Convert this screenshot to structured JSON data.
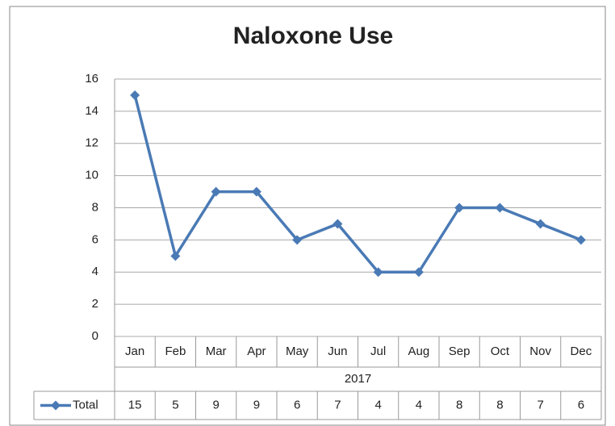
{
  "chart_data": {
    "type": "line",
    "title": "Naloxone Use",
    "categories": [
      "Jan",
      "Feb",
      "Mar",
      "Apr",
      "May",
      "Jun",
      "Jul",
      "Aug",
      "Sep",
      "Oct",
      "Nov",
      "Dec"
    ],
    "category_group": "2017",
    "series": [
      {
        "name": "Total",
        "color": "#4a7ab5",
        "values": [
          15,
          5,
          9,
          9,
          6,
          7,
          4,
          4,
          8,
          8,
          7,
          6
        ]
      }
    ],
    "ylim": [
      0,
      16
    ],
    "yticks": [
      0,
      2,
      4,
      6,
      8,
      10,
      12,
      14,
      16
    ],
    "grid": true,
    "data_table": true
  }
}
